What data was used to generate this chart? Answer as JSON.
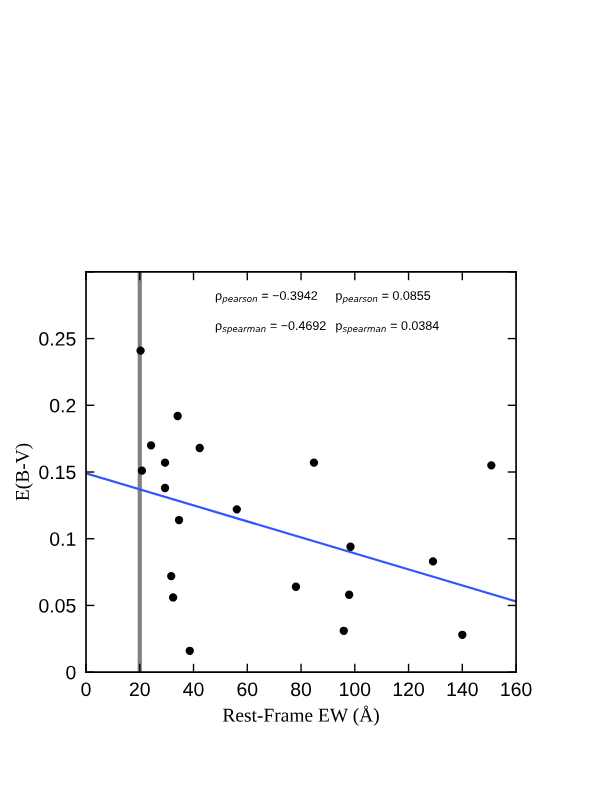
{
  "chart_data": {
    "type": "scatter",
    "xlabel": "Rest-Frame EW (Å)",
    "ylabel": "E(B-V)",
    "xlim": [
      0,
      160
    ],
    "xticks": [
      0,
      20,
      40,
      60,
      80,
      100,
      120,
      140,
      160
    ],
    "ylim": [
      0,
      0.3
    ],
    "yticks": [
      0,
      0.05,
      0.1,
      0.15,
      0.2,
      0.25,
      {
        "value": 0.3,
        "label": null
      }
    ],
    "grid": false,
    "legend": false,
    "series": [
      {
        "marker": "circle",
        "color": "#000000",
        "x": [
          20.3,
          34.1,
          24.2,
          42.3,
          20.8,
          29.4,
          84.8,
          150.8,
          29.4,
          34.6,
          56.1,
          98.4,
          129.1,
          31.7,
          32.4,
          78.1,
          97.9,
          95.9,
          140,
          38.6
        ],
        "values": [
          0.241,
          0.192,
          0.17,
          0.168,
          0.151,
          0.157,
          0.157,
          0.155,
          0.138,
          0.114,
          0.122,
          0.094,
          0.083,
          0.072,
          0.056,
          0.064,
          0.058,
          0.031,
          0.028,
          0.016
        ]
      },
      {
        "type": "line",
        "color": "#3355ff",
        "x": [
          0,
          160
        ],
        "values": [
          0.149,
          0.053
        ]
      }
    ],
    "ref_lines": [
      {
        "axis": "x",
        "value": 20,
        "color": "#808080"
      }
    ],
    "annotations": [
      "ρ$_{pearson}$ = −0.3942",
      "p$_{pearson}$ = 0.0855",
      "ρ$_{spearman}$ = −0.4692",
      "p$_{spearman}$ = 0.0384"
    ]
  }
}
